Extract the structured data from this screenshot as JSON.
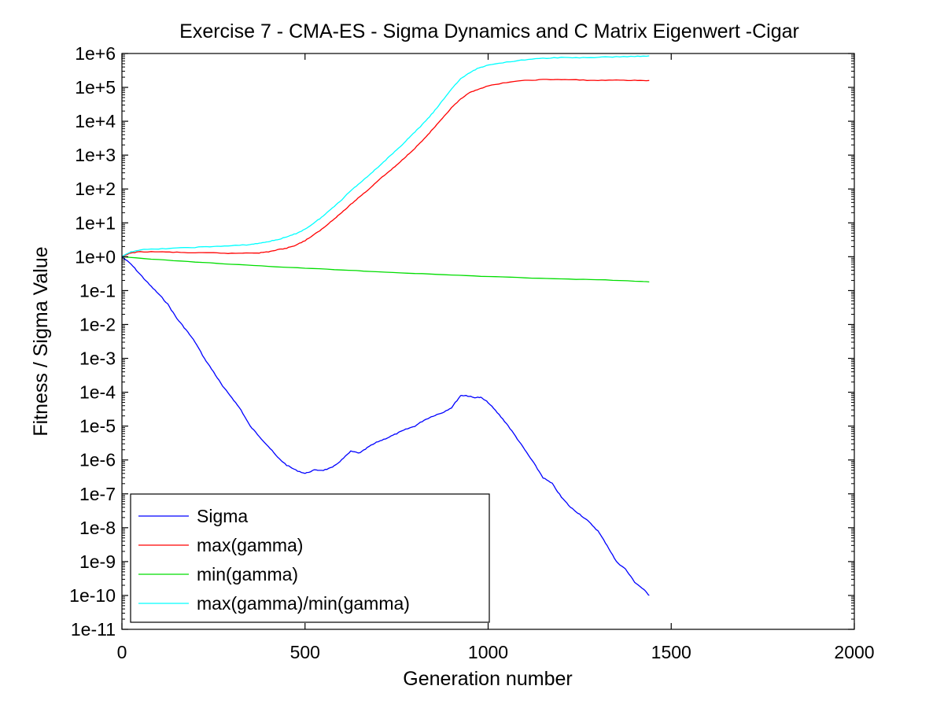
{
  "chart_data": {
    "type": "line",
    "title": "Exercise 7 - CMA-ES - Sigma Dynamics and C Matrix Eigenwert -Cigar",
    "xlabel": "Generation number",
    "ylabel": "Fitness / Sigma Value",
    "xlim": [
      0,
      2000
    ],
    "ylim": [
      1e-11,
      1000000.0
    ],
    "yscale": "log",
    "grid": false,
    "legend_position": "bottom-left",
    "x_ticks": [
      0,
      500,
      1000,
      1500,
      2000
    ],
    "x_tick_labels": [
      "0",
      "500",
      "1000",
      "1500",
      "2000"
    ],
    "y_ticks": [
      1e-11,
      1e-10,
      1e-09,
      1e-08,
      1e-07,
      1e-06,
      1e-05,
      0.0001,
      0.001,
      0.01,
      0.1,
      1.0,
      10.0,
      100.0,
      1000.0,
      10000.0,
      100000.0,
      1000000.0
    ],
    "y_tick_labels": [
      "1e-11",
      "1e-10",
      "1e-9",
      "1e-8",
      "1e-7",
      "1e-6",
      "1e-5",
      "1e-4",
      "1e-3",
      "1e-2",
      "1e-1",
      "1e+0",
      "1e+1",
      "1e+2",
      "1e+3",
      "1e+4",
      "1e+5",
      "1e+6"
    ],
    "series": [
      {
        "name": "Sigma",
        "color": "#0000ff",
        "x": [
          0,
          25,
          50,
          75,
          100,
          125,
          150,
          175,
          200,
          225,
          250,
          275,
          300,
          325,
          350,
          375,
          400,
          425,
          450,
          475,
          500,
          525,
          550,
          575,
          600,
          625,
          650,
          675,
          700,
          725,
          750,
          775,
          800,
          825,
          850,
          875,
          900,
          925,
          940,
          960,
          980,
          1000,
          1025,
          1050,
          1075,
          1100,
          1125,
          1150,
          1175,
          1200,
          1225,
          1250,
          1275,
          1300,
          1325,
          1350,
          1375,
          1400,
          1425,
          1440
        ],
        "y": [
          1.0,
          0.6,
          0.3,
          0.15,
          0.08,
          0.04,
          0.015,
          0.007,
          0.003,
          0.001,
          0.0004,
          0.00015,
          7e-05,
          3e-05,
          1e-05,
          5e-06,
          2.5e-06,
          1.2e-06,
          7e-07,
          5e-07,
          4e-07,
          5e-07,
          5e-07,
          6e-07,
          1e-06,
          1.8e-06,
          1.6e-06,
          2.5e-06,
          3.5e-06,
          4.5e-06,
          6e-06,
          8e-06,
          1e-05,
          1.5e-05,
          2e-05,
          2.5e-05,
          3.5e-05,
          8e-05,
          8e-05,
          7e-05,
          7e-05,
          5e-05,
          2.5e-05,
          1.2e-05,
          5e-06,
          2e-06,
          8e-07,
          3e-07,
          2e-07,
          8e-08,
          4e-08,
          2.5e-08,
          1.5e-08,
          8e-09,
          3e-09,
          1e-09,
          6e-10,
          2.5e-10,
          1.5e-10,
          1e-10
        ]
      },
      {
        "name": "max(gamma)",
        "color": "#ff0000",
        "x": [
          0,
          25,
          50,
          100,
          150,
          200,
          250,
          300,
          350,
          375,
          400,
          425,
          450,
          475,
          500,
          525,
          550,
          575,
          600,
          625,
          650,
          675,
          700,
          725,
          750,
          775,
          800,
          825,
          850,
          875,
          900,
          925,
          950,
          975,
          1000,
          1050,
          1100,
          1150,
          1200,
          1250,
          1300,
          1350,
          1400,
          1440
        ],
        "y": [
          1.0,
          1.3,
          1.4,
          1.4,
          1.35,
          1.3,
          1.3,
          1.25,
          1.3,
          1.3,
          1.4,
          1.6,
          1.8,
          2.2,
          3.0,
          4.5,
          7,
          12,
          20,
          35,
          60,
          100,
          180,
          300,
          500,
          900,
          1600,
          3000,
          6000,
          12000,
          25000,
          45000,
          70000,
          90000,
          110000,
          140000,
          160000,
          170000,
          170000,
          165000,
          160000,
          165000,
          160000,
          160000
        ]
      },
      {
        "name": "min(gamma)",
        "color": "#00dd00",
        "x": [
          0,
          100,
          200,
          300,
          400,
          500,
          600,
          700,
          800,
          900,
          1000,
          1100,
          1200,
          1300,
          1400,
          1440
        ],
        "y": [
          1.0,
          0.82,
          0.7,
          0.6,
          0.52,
          0.46,
          0.41,
          0.36,
          0.32,
          0.29,
          0.26,
          0.24,
          0.22,
          0.21,
          0.19,
          0.18
        ]
      },
      {
        "name": "max(gamma)/min(gamma)",
        "color": "#00ffff",
        "x": [
          0,
          25,
          50,
          100,
          150,
          200,
          250,
          300,
          350,
          375,
          400,
          425,
          450,
          475,
          500,
          525,
          550,
          575,
          600,
          625,
          650,
          675,
          700,
          725,
          750,
          775,
          800,
          825,
          850,
          875,
          900,
          925,
          950,
          975,
          1000,
          1050,
          1100,
          1150,
          1200,
          1250,
          1300,
          1350,
          1400,
          1440
        ],
        "y": [
          1.0,
          1.4,
          1.6,
          1.7,
          1.8,
          1.9,
          2.0,
          2.1,
          2.3,
          2.5,
          2.8,
          3.2,
          3.8,
          4.8,
          6.5,
          10,
          16,
          28,
          48,
          90,
          150,
          260,
          450,
          800,
          1400,
          2600,
          4800,
          9000,
          18000,
          40000,
          90000,
          180000,
          270000,
          380000,
          450000,
          560000,
          650000,
          720000,
          760000,
          750000,
          770000,
          800000,
          820000,
          850000
        ]
      }
    ]
  }
}
